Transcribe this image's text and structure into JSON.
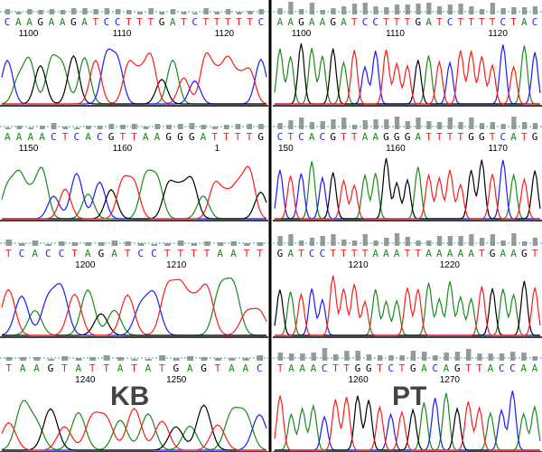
{
  "colors": {
    "A": "#1a8a1a",
    "C": "#1a1aff",
    "G": "#000000",
    "T": "#ff1a1a",
    "quality_bar": "#999999",
    "dash_line": "#33aaaa",
    "divider": "#000000"
  },
  "samples": [
    {
      "label": "",
      "rows": [
        {
          "seq": "CAAGAAGATCCTTTGATCTTTTTC",
          "ticks": [
            "1100",
            "1110",
            "1120"
          ]
        },
        {
          "seq": "AAAACTCACGTTAAGGGATTTTG",
          "ticks": [
            "1150",
            "1160",
            "1"
          ]
        },
        {
          "seq": "TCACCTAGATCCTTTTAATT",
          "ticks": [
            "1200",
            "1210"
          ]
        },
        {
          "seq": "TAAGTATTATATGAGTAAC",
          "ticks": [
            "1240",
            "1250"
          ]
        }
      ]
    },
    {
      "label": "",
      "rows": [
        {
          "seq": "AAGAAGATCCTTTGATCTTTTCTAC",
          "ticks": [
            "1100",
            "1110",
            "1120"
          ]
        },
        {
          "seq": "CTCACGTTAAGGGATTTTGGTCATG",
          "ticks": [
            "150",
            "1160",
            "1170"
          ]
        },
        {
          "seq": "GATCCTTTTAAATTAAAAATGAAGT",
          "ticks": [
            "1210",
            "1220"
          ]
        },
        {
          "seq": "TAAACTTGGTCTGACAGTTACCAA",
          "ticks": [
            "1260",
            "1270"
          ]
        }
      ]
    }
  ],
  "panel_labels": [
    "KB",
    "PT"
  ]
}
